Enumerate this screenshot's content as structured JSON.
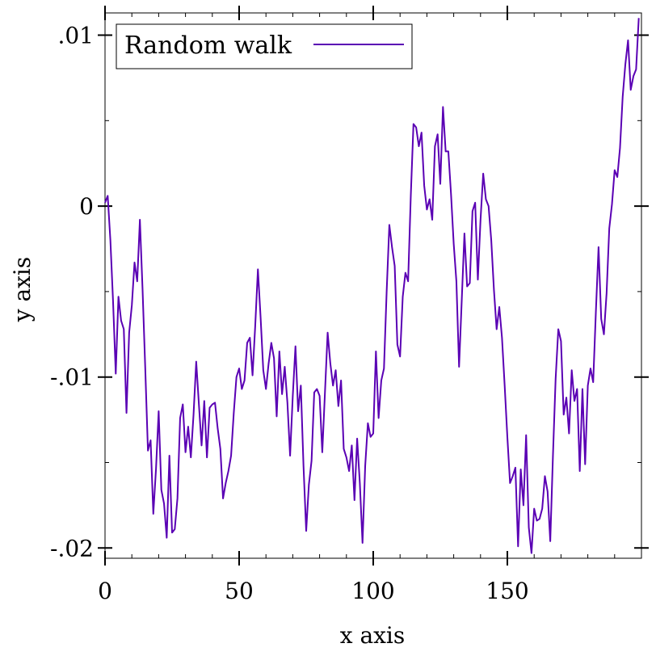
{
  "chart_data": {
    "type": "line",
    "title": "",
    "xlabel": "x axis",
    "ylabel": "y axis",
    "xlim": [
      0,
      200
    ],
    "ylim": [
      -0.0206,
      0.0113
    ],
    "grid": false,
    "legend_position": "top-left",
    "x_ticks": [
      {
        "value": 0,
        "label": "0"
      },
      {
        "value": 50,
        "label": "50"
      },
      {
        "value": 100,
        "label": "100"
      },
      {
        "value": 150,
        "label": "150"
      }
    ],
    "y_ticks": [
      {
        "value": 0.01,
        "label": ".01"
      },
      {
        "value": 0,
        "label": "0"
      },
      {
        "value": -0.01,
        "label": "-.01"
      },
      {
        "value": -0.02,
        "label": "-.02"
      }
    ],
    "x_minor_step": 10,
    "y_minor_step": 0.005,
    "series": [
      {
        "name": "Random walk",
        "color": "#5a00b4",
        "points": [
          [
            0,
            0.0002
          ],
          [
            1,
            0.0006
          ],
          [
            2,
            -0.002
          ],
          [
            3,
            -0.0056
          ],
          [
            4,
            -0.0098
          ],
          [
            5,
            -0.0053
          ],
          [
            6,
            -0.0067
          ],
          [
            7,
            -0.0072
          ],
          [
            8,
            -0.0121
          ],
          [
            9,
            -0.0074
          ],
          [
            10,
            -0.0058
          ],
          [
            11,
            -0.0033
          ],
          [
            12,
            -0.0044
          ],
          [
            13,
            -0.0008
          ],
          [
            14,
            -0.0049
          ],
          [
            15,
            -0.0095
          ],
          [
            16,
            -0.0143
          ],
          [
            17,
            -0.0137
          ],
          [
            18,
            -0.018
          ],
          [
            19,
            -0.0154
          ],
          [
            20,
            -0.012
          ],
          [
            21,
            -0.0166
          ],
          [
            22,
            -0.0174
          ],
          [
            23,
            -0.0194
          ],
          [
            24,
            -0.0146
          ],
          [
            25,
            -0.0191
          ],
          [
            26,
            -0.0189
          ],
          [
            27,
            -0.0171
          ],
          [
            28,
            -0.0124
          ],
          [
            29,
            -0.0116
          ],
          [
            30,
            -0.0144
          ],
          [
            31,
            -0.0129
          ],
          [
            32,
            -0.0147
          ],
          [
            33,
            -0.0122
          ],
          [
            34,
            -0.0091
          ],
          [
            35,
            -0.0116
          ],
          [
            36,
            -0.014
          ],
          [
            37,
            -0.0114
          ],
          [
            38,
            -0.0147
          ],
          [
            39,
            -0.0118
          ],
          [
            40,
            -0.0116
          ],
          [
            41,
            -0.0115
          ],
          [
            42,
            -0.013
          ],
          [
            43,
            -0.0142
          ],
          [
            44,
            -0.0171
          ],
          [
            45,
            -0.0162
          ],
          [
            46,
            -0.0155
          ],
          [
            47,
            -0.0146
          ],
          [
            48,
            -0.0121
          ],
          [
            49,
            -0.01
          ],
          [
            50,
            -0.0095
          ],
          [
            51,
            -0.0107
          ],
          [
            52,
            -0.0102
          ],
          [
            53,
            -0.008
          ],
          [
            54,
            -0.0077
          ],
          [
            55,
            -0.0099
          ],
          [
            56,
            -0.007
          ],
          [
            57,
            -0.0037
          ],
          [
            58,
            -0.0065
          ],
          [
            59,
            -0.0096
          ],
          [
            60,
            -0.0107
          ],
          [
            61,
            -0.0092
          ],
          [
            62,
            -0.008
          ],
          [
            63,
            -0.0089
          ],
          [
            64,
            -0.0123
          ],
          [
            65,
            -0.0085
          ],
          [
            66,
            -0.011
          ],
          [
            67,
            -0.0094
          ],
          [
            68,
            -0.0115
          ],
          [
            69,
            -0.0146
          ],
          [
            70,
            -0.0111
          ],
          [
            71,
            -0.0082
          ],
          [
            72,
            -0.012
          ],
          [
            73,
            -0.0105
          ],
          [
            74,
            -0.0152
          ],
          [
            75,
            -0.019
          ],
          [
            76,
            -0.0163
          ],
          [
            77,
            -0.0149
          ],
          [
            78,
            -0.0109
          ],
          [
            79,
            -0.0107
          ],
          [
            80,
            -0.0111
          ],
          [
            81,
            -0.0144
          ],
          [
            82,
            -0.0109
          ],
          [
            83,
            -0.0074
          ],
          [
            84,
            -0.0092
          ],
          [
            85,
            -0.0105
          ],
          [
            86,
            -0.0096
          ],
          [
            87,
            -0.0117
          ],
          [
            88,
            -0.0102
          ],
          [
            89,
            -0.0142
          ],
          [
            90,
            -0.0147
          ],
          [
            91,
            -0.0155
          ],
          [
            92,
            -0.014
          ],
          [
            93,
            -0.0172
          ],
          [
            94,
            -0.0136
          ],
          [
            95,
            -0.0162
          ],
          [
            96,
            -0.0197
          ],
          [
            97,
            -0.0152
          ],
          [
            98,
            -0.0127
          ],
          [
            99,
            -0.0135
          ],
          [
            100,
            -0.0133
          ],
          [
            101,
            -0.0085
          ],
          [
            102,
            -0.0124
          ],
          [
            103,
            -0.0102
          ],
          [
            104,
            -0.0095
          ],
          [
            105,
            -0.005
          ],
          [
            106,
            -0.0011
          ],
          [
            107,
            -0.0024
          ],
          [
            108,
            -0.0035
          ],
          [
            109,
            -0.0081
          ],
          [
            110,
            -0.0088
          ],
          [
            111,
            -0.0053
          ],
          [
            112,
            -0.0039
          ],
          [
            113,
            -0.0044
          ],
          [
            114,
            0.0006
          ],
          [
            115,
            0.0048
          ],
          [
            116,
            0.0046
          ],
          [
            117,
            0.0035
          ],
          [
            118,
            0.0043
          ],
          [
            119,
            0.0012
          ],
          [
            120,
            -0.0002
          ],
          [
            121,
            0.0004
          ],
          [
            122,
            -0.0008
          ],
          [
            123,
            0.0035
          ],
          [
            124,
            0.0042
          ],
          [
            125,
            0.0013
          ],
          [
            126,
            0.0058
          ],
          [
            127,
            0.0032
          ],
          [
            128,
            0.0032
          ],
          [
            129,
            0.0007
          ],
          [
            130,
            -0.0022
          ],
          [
            131,
            -0.0044
          ],
          [
            132,
            -0.0094
          ],
          [
            133,
            -0.0055
          ],
          [
            134,
            -0.0016
          ],
          [
            135,
            -0.0047
          ],
          [
            136,
            -0.0045
          ],
          [
            137,
            -0.0003
          ],
          [
            138,
            0.0002
          ],
          [
            139,
            -0.0043
          ],
          [
            140,
            -0.0008
          ],
          [
            141,
            0.0019
          ],
          [
            142,
            0.0004
          ],
          [
            143,
            0.0
          ],
          [
            144,
            -0.002
          ],
          [
            145,
            -0.0049
          ],
          [
            146,
            -0.0072
          ],
          [
            147,
            -0.0059
          ],
          [
            148,
            -0.0077
          ],
          [
            149,
            -0.0105
          ],
          [
            150,
            -0.0135
          ],
          [
            151,
            -0.0162
          ],
          [
            152,
            -0.0158
          ],
          [
            153,
            -0.0153
          ],
          [
            154,
            -0.0199
          ],
          [
            155,
            -0.0154
          ],
          [
            156,
            -0.0175
          ],
          [
            157,
            -0.0134
          ],
          [
            158,
            -0.0188
          ],
          [
            159,
            -0.0203
          ],
          [
            160,
            -0.0177
          ],
          [
            161,
            -0.0184
          ],
          [
            162,
            -0.0183
          ],
          [
            163,
            -0.0177
          ],
          [
            164,
            -0.0158
          ],
          [
            165,
            -0.0167
          ],
          [
            166,
            -0.0196
          ],
          [
            167,
            -0.0146
          ],
          [
            168,
            -0.0101
          ],
          [
            169,
            -0.0072
          ],
          [
            170,
            -0.0079
          ],
          [
            171,
            -0.0122
          ],
          [
            172,
            -0.0112
          ],
          [
            173,
            -0.0133
          ],
          [
            174,
            -0.0096
          ],
          [
            175,
            -0.0114
          ],
          [
            176,
            -0.0107
          ],
          [
            177,
            -0.0155
          ],
          [
            178,
            -0.0107
          ],
          [
            179,
            -0.0151
          ],
          [
            180,
            -0.0105
          ],
          [
            181,
            -0.0095
          ],
          [
            182,
            -0.0103
          ],
          [
            183,
            -0.0062
          ],
          [
            184,
            -0.0024
          ],
          [
            185,
            -0.0066
          ],
          [
            186,
            -0.0075
          ],
          [
            187,
            -0.0051
          ],
          [
            188,
            -0.0013
          ],
          [
            189,
            0.0001
          ],
          [
            190,
            0.0021
          ],
          [
            191,
            0.0017
          ],
          [
            192,
            0.0034
          ],
          [
            193,
            0.0064
          ],
          [
            194,
            0.0083
          ],
          [
            195,
            0.0097
          ],
          [
            196,
            0.0068
          ],
          [
            197,
            0.0076
          ],
          [
            198,
            0.008
          ],
          [
            199,
            0.011
          ]
        ]
      }
    ]
  }
}
